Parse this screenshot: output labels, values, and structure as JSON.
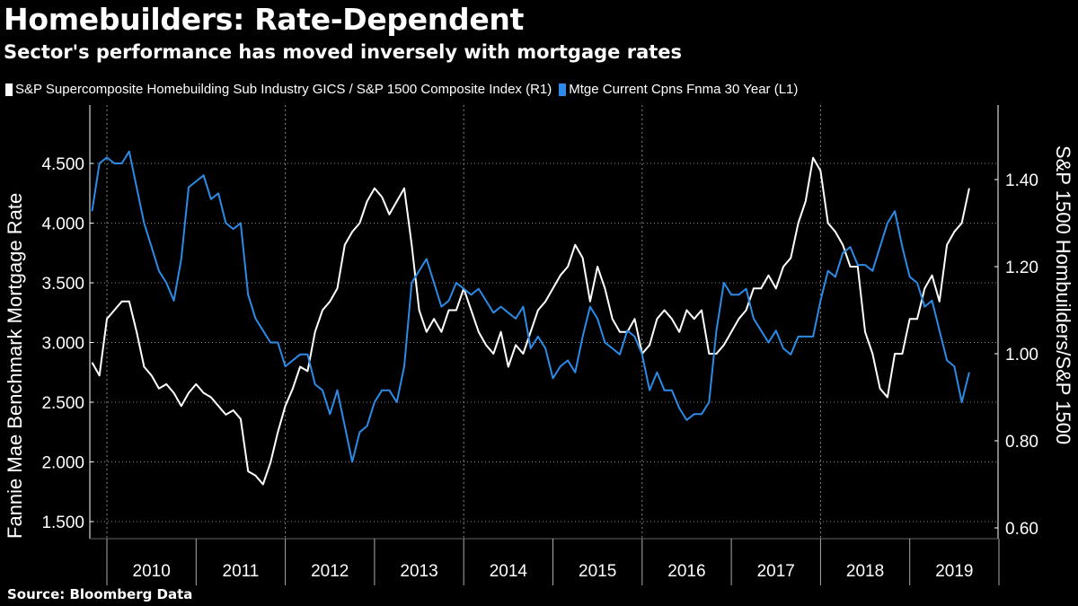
{
  "title": "Homebuilders: Rate-Dependent",
  "subtitle": "Sector's performance has moved inversely with mortgage rates",
  "source": "Source: Bloomberg Data",
  "chart_data": {
    "type": "line",
    "xlabel": "",
    "x_tick_labels": [
      "2010",
      "2011",
      "2012",
      "2013",
      "2014",
      "2015",
      "2016",
      "2017",
      "2018",
      "2019"
    ],
    "left_axis": {
      "label": "Fannie Mae Benchmark Mortgage Rate",
      "ticks": [
        "1.500",
        "2.000",
        "2.500",
        "3.000",
        "3.500",
        "4.000",
        "4.500"
      ],
      "range": [
        1.4,
        4.75
      ]
    },
    "right_axis": {
      "label": "S&P 1500 Hombuilders/S&P 1500",
      "ticks": [
        "0.60",
        "0.80",
        "1.00",
        "1.20",
        "1.40"
      ],
      "range": [
        0.57,
        1.55
      ]
    },
    "grid": true,
    "legend_position": "top",
    "x": [
      "2009-11",
      "2009-12",
      "2010-01",
      "2010-02",
      "2010-03",
      "2010-04",
      "2010-05",
      "2010-06",
      "2010-07",
      "2010-08",
      "2010-09",
      "2010-10",
      "2010-11",
      "2010-12",
      "2011-01",
      "2011-02",
      "2011-03",
      "2011-04",
      "2011-05",
      "2011-06",
      "2011-07",
      "2011-08",
      "2011-09",
      "2011-10",
      "2011-11",
      "2011-12",
      "2012-01",
      "2012-02",
      "2012-03",
      "2012-04",
      "2012-05",
      "2012-06",
      "2012-07",
      "2012-08",
      "2012-09",
      "2012-10",
      "2012-11",
      "2012-12",
      "2013-01",
      "2013-02",
      "2013-03",
      "2013-04",
      "2013-05",
      "2013-06",
      "2013-07",
      "2013-08",
      "2013-09",
      "2013-10",
      "2013-11",
      "2013-12",
      "2014-01",
      "2014-02",
      "2014-03",
      "2014-04",
      "2014-05",
      "2014-06",
      "2014-07",
      "2014-08",
      "2014-09",
      "2014-10",
      "2014-11",
      "2014-12",
      "2015-01",
      "2015-02",
      "2015-03",
      "2015-04",
      "2015-05",
      "2015-06",
      "2015-07",
      "2015-08",
      "2015-09",
      "2015-10",
      "2015-11",
      "2015-12",
      "2016-01",
      "2016-02",
      "2016-03",
      "2016-04",
      "2016-05",
      "2016-06",
      "2016-07",
      "2016-08",
      "2016-09",
      "2016-10",
      "2016-11",
      "2016-12",
      "2017-01",
      "2017-02",
      "2017-03",
      "2017-04",
      "2017-05",
      "2017-06",
      "2017-07",
      "2017-08",
      "2017-09",
      "2017-10",
      "2017-11",
      "2017-12",
      "2018-01",
      "2018-02",
      "2018-03",
      "2018-04",
      "2018-05",
      "2018-06",
      "2018-07",
      "2018-08",
      "2018-09",
      "2018-10",
      "2018-11",
      "2018-12",
      "2019-01",
      "2019-02",
      "2019-03",
      "2019-04",
      "2019-05",
      "2019-06",
      "2019-07",
      "2019-08",
      "2019-09"
    ],
    "series": [
      {
        "name": "S&P Supercomposite Homebuilding Sub Industry GICS / S&P 1500 Composite Index (R1)",
        "axis": "right",
        "color": "#ffffff",
        "values": [
          0.98,
          0.95,
          1.08,
          1.1,
          1.12,
          1.12,
          1.05,
          0.97,
          0.95,
          0.92,
          0.93,
          0.91,
          0.88,
          0.91,
          0.93,
          0.91,
          0.9,
          0.88,
          0.86,
          0.87,
          0.85,
          0.73,
          0.72,
          0.7,
          0.75,
          0.82,
          0.88,
          0.92,
          0.97,
          0.96,
          1.05,
          1.1,
          1.12,
          1.15,
          1.25,
          1.28,
          1.3,
          1.35,
          1.38,
          1.36,
          1.32,
          1.35,
          1.38,
          1.25,
          1.1,
          1.05,
          1.08,
          1.05,
          1.1,
          1.1,
          1.15,
          1.1,
          1.05,
          1.02,
          1.0,
          1.05,
          0.97,
          1.02,
          1.0,
          1.05,
          1.1,
          1.12,
          1.15,
          1.18,
          1.2,
          1.25,
          1.22,
          1.12,
          1.2,
          1.15,
          1.08,
          1.05,
          1.05,
          1.08,
          1.0,
          1.02,
          1.08,
          1.1,
          1.08,
          1.05,
          1.1,
          1.08,
          1.1,
          1.0,
          1.0,
          1.02,
          1.05,
          1.08,
          1.1,
          1.15,
          1.15,
          1.18,
          1.15,
          1.2,
          1.22,
          1.3,
          1.35,
          1.45,
          1.42,
          1.3,
          1.28,
          1.25,
          1.2,
          1.2,
          1.05,
          1.0,
          0.92,
          0.9,
          1.0,
          1.0,
          1.08,
          1.08,
          1.15,
          1.18,
          1.12,
          1.25,
          1.28,
          1.3,
          1.38
        ]
      },
      {
        "name": "Mtge Current Cpns Fnma 30 Year  (L1)",
        "axis": "left",
        "color": "#2b8be6",
        "values": [
          4.1,
          4.5,
          4.55,
          4.5,
          4.5,
          4.6,
          4.3,
          4.0,
          3.8,
          3.6,
          3.5,
          3.35,
          3.7,
          4.3,
          4.35,
          4.4,
          4.2,
          4.25,
          4.0,
          3.95,
          4.0,
          3.4,
          3.2,
          3.1,
          3.0,
          3.0,
          2.8,
          2.85,
          2.9,
          2.9,
          2.65,
          2.6,
          2.4,
          2.6,
          2.3,
          2.0,
          2.25,
          2.3,
          2.5,
          2.6,
          2.6,
          2.5,
          2.8,
          3.5,
          3.6,
          3.7,
          3.5,
          3.3,
          3.35,
          3.5,
          3.45,
          3.4,
          3.45,
          3.35,
          3.25,
          3.3,
          3.25,
          3.2,
          3.3,
          2.95,
          3.05,
          2.95,
          2.7,
          2.8,
          2.85,
          2.75,
          3.05,
          3.3,
          3.2,
          3.0,
          2.95,
          2.9,
          3.1,
          3.05,
          2.9,
          2.6,
          2.75,
          2.6,
          2.6,
          2.45,
          2.35,
          2.4,
          2.4,
          2.5,
          3.1,
          3.5,
          3.4,
          3.4,
          3.45,
          3.2,
          3.1,
          3.0,
          3.1,
          2.95,
          2.9,
          3.05,
          3.05,
          3.05,
          3.35,
          3.6,
          3.55,
          3.75,
          3.8,
          3.65,
          3.65,
          3.6,
          3.8,
          4.0,
          4.1,
          3.8,
          3.55,
          3.5,
          3.3,
          3.35,
          3.1,
          2.85,
          2.8,
          2.5,
          2.75
        ]
      }
    ]
  }
}
